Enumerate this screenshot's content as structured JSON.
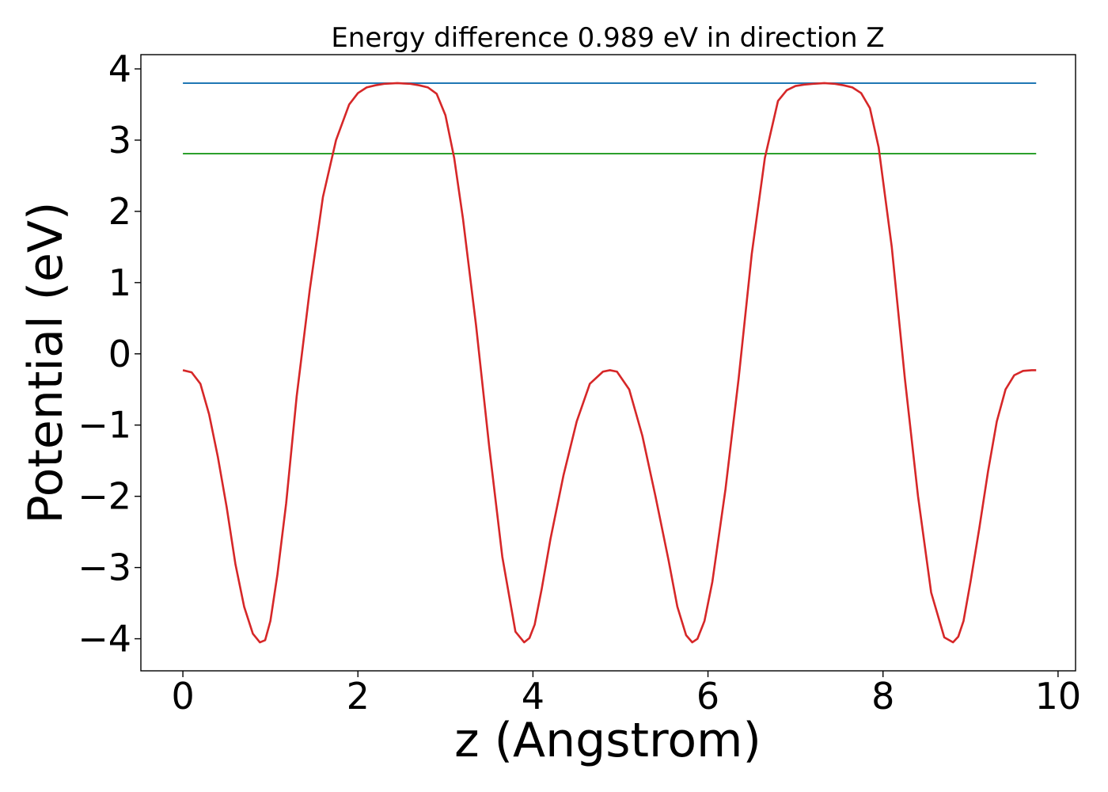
{
  "chart_data": {
    "type": "line",
    "title": "Energy difference 0.989 eV in direction Z",
    "xlabel": "z (Angstrom)",
    "ylabel": "Potential (eV)",
    "xlim": [
      -0.48,
      10.2
    ],
    "ylim": [
      -4.45,
      4.2
    ],
    "xticks": [
      0,
      2,
      4,
      6,
      8,
      10
    ],
    "xtick_labels": [
      "0",
      "2",
      "4",
      "6",
      "8",
      "10"
    ],
    "yticks": [
      -4,
      -3,
      -2,
      -1,
      0,
      1,
      2,
      3,
      4
    ],
    "ytick_labels": [
      "−4",
      "−3",
      "−2",
      "−1",
      "0",
      "1",
      "2",
      "3",
      "4"
    ],
    "grid": false,
    "series": [
      {
        "color": "#1f77b4",
        "x": [
          0,
          9.75
        ],
        "y": [
          3.8,
          3.8
        ]
      },
      {
        "color": "#2ca02c",
        "x": [
          0,
          9.75
        ],
        "y": [
          2.81,
          2.81
        ]
      },
      {
        "color": "#d62728",
        "x": [
          0,
          0.1,
          0.2,
          0.3,
          0.4,
          0.5,
          0.6,
          0.7,
          0.8,
          0.88,
          0.94,
          1.0,
          1.08,
          1.18,
          1.3,
          1.45,
          1.6,
          1.75,
          1.9,
          2.0,
          2.1,
          2.2,
          2.3,
          2.45,
          2.6,
          2.7,
          2.8,
          2.9,
          3.0,
          3.1,
          3.2,
          3.35,
          3.5,
          3.65,
          3.8,
          3.9,
          3.96,
          4.02,
          4.1,
          4.2,
          4.35,
          4.5,
          4.65,
          4.8,
          4.88,
          4.96,
          5.1,
          5.25,
          5.4,
          5.55,
          5.65,
          5.75,
          5.82,
          5.88,
          5.96,
          6.05,
          6.2,
          6.35,
          6.5,
          6.65,
          6.8,
          6.9,
          7.0,
          7.1,
          7.2,
          7.33,
          7.45,
          7.55,
          7.65,
          7.75,
          7.85,
          7.95,
          8.1,
          8.25,
          8.4,
          8.55,
          8.7,
          8.8,
          8.86,
          8.92,
          9.0,
          9.1,
          9.2,
          9.3,
          9.4,
          9.5,
          9.6,
          9.7,
          9.75
        ],
        "y": [
          -0.23,
          -0.26,
          -0.42,
          -0.85,
          -1.45,
          -2.15,
          -2.95,
          -3.55,
          -3.93,
          -4.05,
          -4.02,
          -3.75,
          -3.1,
          -2.1,
          -0.6,
          0.9,
          2.2,
          3.0,
          3.5,
          3.66,
          3.74,
          3.77,
          3.79,
          3.8,
          3.79,
          3.77,
          3.74,
          3.65,
          3.35,
          2.75,
          1.9,
          0.4,
          -1.3,
          -2.85,
          -3.9,
          -4.05,
          -3.99,
          -3.8,
          -3.3,
          -2.6,
          -1.7,
          -0.95,
          -0.42,
          -0.25,
          -0.23,
          -0.25,
          -0.5,
          -1.15,
          -2.0,
          -2.9,
          -3.55,
          -3.95,
          -4.05,
          -4.0,
          -3.75,
          -3.2,
          -1.9,
          -0.35,
          1.4,
          2.75,
          3.55,
          3.7,
          3.76,
          3.78,
          3.79,
          3.8,
          3.79,
          3.77,
          3.74,
          3.66,
          3.45,
          2.9,
          1.5,
          -0.35,
          -2.0,
          -3.35,
          -3.98,
          -4.05,
          -3.97,
          -3.75,
          -3.2,
          -2.45,
          -1.65,
          -0.95,
          -0.5,
          -0.3,
          -0.24,
          -0.23,
          -0.23
        ]
      }
    ]
  }
}
